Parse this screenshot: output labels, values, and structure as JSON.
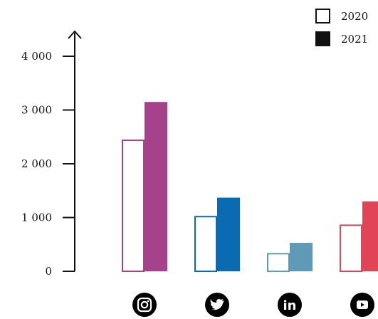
{
  "chart_data": {
    "type": "bar",
    "categories": [
      "instagram",
      "twitter",
      "linkedin",
      "youtube"
    ],
    "category_icons": [
      "instagram-icon",
      "twitter-icon",
      "linkedin-icon",
      "youtube-icon"
    ],
    "category_colors": [
      "#a6418c",
      "#0a6bb3",
      "#5f9ab8",
      "#e24457"
    ],
    "series": [
      {
        "name": "2020",
        "style": "outline",
        "values": [
          2450,
          1030,
          340,
          870
        ]
      },
      {
        "name": "2021",
        "style": "filled",
        "values": [
          3150,
          1370,
          530,
          1300
        ]
      }
    ],
    "y_ticks": [
      "0",
      "1 000",
      "2 000",
      "3 000",
      "4 000"
    ],
    "ylim": [
      0,
      4400
    ],
    "legend": {
      "position": "top-right",
      "items": [
        "2020",
        "2021"
      ]
    },
    "grid": false,
    "xlabel": "",
    "ylabel": ""
  }
}
